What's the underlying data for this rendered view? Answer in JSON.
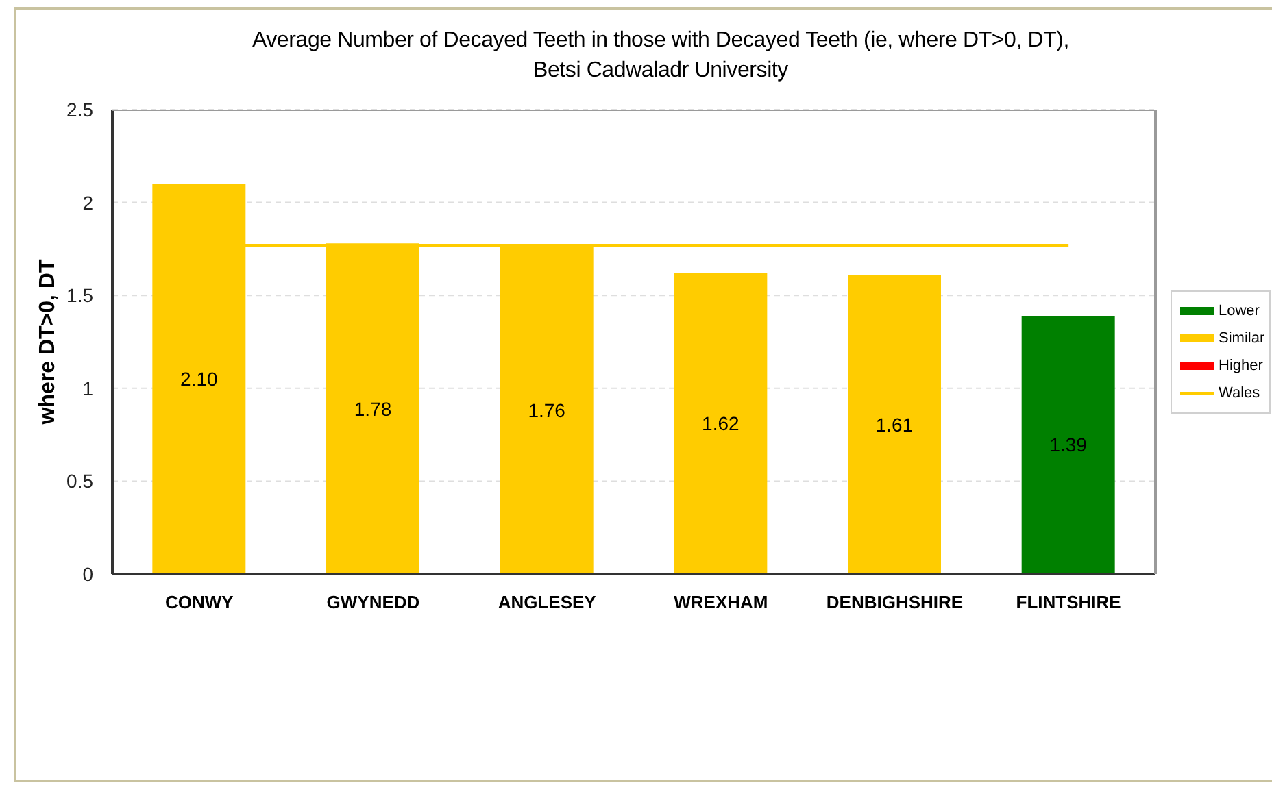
{
  "chart_data": {
    "type": "bar",
    "title": "Average Number of Decayed Teeth in those with Decayed Teeth (ie, where DT>0, DT),\nBetsi Cadwaladr University",
    "ylabel": "where DT>0, DT",
    "categories": [
      "CONWY",
      "GWYNEDD",
      "ANGLESEY",
      "WREXHAM",
      "DENBIGHSHIRE",
      "FLINTSHIRE"
    ],
    "series": [
      {
        "name": "Lower",
        "color": "#008000",
        "values": [
          null,
          null,
          null,
          null,
          null,
          1.39
        ],
        "value_labels": [
          null,
          null,
          null,
          null,
          null,
          "1.39"
        ]
      },
      {
        "name": "Similar",
        "color": "#ffcc00",
        "values": [
          2.1,
          1.78,
          1.76,
          1.62,
          1.61,
          null
        ],
        "value_labels": [
          "2.10",
          "1.78",
          "1.76",
          "1.62",
          "1.61",
          null
        ]
      },
      {
        "name": "Higher",
        "color": "#ff0000",
        "values": [
          null,
          null,
          null,
          null,
          null,
          null
        ]
      }
    ],
    "ref_lines": [
      {
        "axis": "y",
        "value": 1.77,
        "label": "Wales",
        "color": "#ffcc00"
      }
    ],
    "stacked": true,
    "ylim": [
      0,
      2.5
    ],
    "yticks": [
      0,
      0.5,
      1,
      1.5,
      2,
      2.5
    ],
    "grid": "y",
    "legend": "right"
  }
}
